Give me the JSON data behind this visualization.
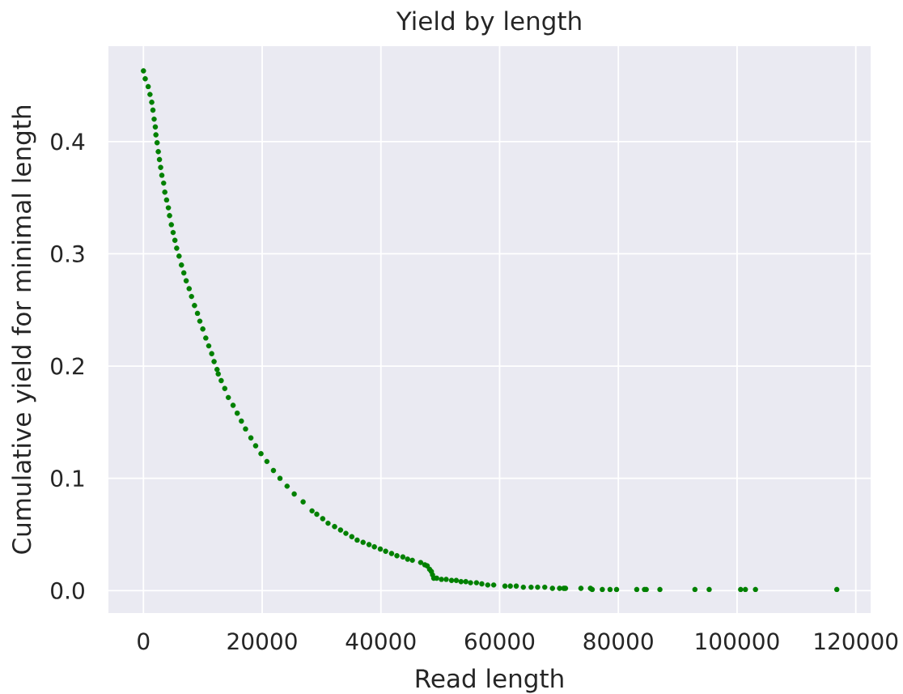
{
  "chart_data": {
    "type": "scatter",
    "title": "Yield by length",
    "xlabel": "Read length",
    "ylabel": "Cumulative yield for minimal length",
    "x": [
      0,
      300,
      800,
      1100,
      1400,
      1600,
      1800,
      2000,
      2100,
      2300,
      2500,
      2700,
      2900,
      3100,
      3400,
      3600,
      3900,
      4200,
      4400,
      4700,
      5000,
      5300,
      5600,
      6000,
      6400,
      6800,
      7200,
      7700,
      8100,
      8600,
      9100,
      9500,
      10000,
      10500,
      11000,
      11500,
      11900,
      12400,
      12600,
      13100,
      13700,
      14300,
      15100,
      15800,
      16500,
      17200,
      18100,
      18900,
      19800,
      20800,
      21900,
      23000,
      24200,
      25400,
      26900,
      28400,
      29200,
      30200,
      31100,
      32200,
      33200,
      34100,
      35100,
      36000,
      37000,
      38000,
      38900,
      39900,
      40800,
      41800,
      42700,
      43700,
      44500,
      45300,
      46700,
      47400,
      47800,
      48200,
      48500,
      48700,
      48900,
      49400,
      50200,
      51000,
      51900,
      52700,
      53500,
      54300,
      55100,
      56100,
      57000,
      58000,
      59000,
      60900,
      61800,
      62800,
      64000,
      65300,
      66400,
      67600,
      68900,
      70100,
      70800,
      71100,
      73700,
      75300,
      75600,
      77300,
      78600,
      79700,
      83100,
      84400,
      84700,
      87000,
      92900,
      95300,
      100600,
      101400,
      103100,
      116800
    ],
    "values": [
      0.463,
      0.456,
      0.449,
      0.442,
      0.435,
      0.428,
      0.42,
      0.413,
      0.406,
      0.399,
      0.391,
      0.384,
      0.377,
      0.37,
      0.363,
      0.355,
      0.348,
      0.341,
      0.334,
      0.326,
      0.319,
      0.312,
      0.305,
      0.298,
      0.29,
      0.283,
      0.276,
      0.269,
      0.262,
      0.254,
      0.247,
      0.24,
      0.233,
      0.225,
      0.218,
      0.211,
      0.204,
      0.197,
      0.193,
      0.187,
      0.18,
      0.172,
      0.165,
      0.158,
      0.151,
      0.144,
      0.136,
      0.129,
      0.122,
      0.115,
      0.107,
      0.1,
      0.093,
      0.086,
      0.079,
      0.071,
      0.068,
      0.064,
      0.06,
      0.057,
      0.054,
      0.051,
      0.048,
      0.045,
      0.043,
      0.041,
      0.039,
      0.037,
      0.035,
      0.033,
      0.031,
      0.03,
      0.028,
      0.027,
      0.025,
      0.023,
      0.022,
      0.019,
      0.017,
      0.014,
      0.011,
      0.011,
      0.01,
      0.01,
      0.009,
      0.009,
      0.008,
      0.008,
      0.007,
      0.007,
      0.006,
      0.005,
      0.005,
      0.004,
      0.004,
      0.004,
      0.003,
      0.003,
      0.003,
      0.003,
      0.002,
      0.002,
      0.002,
      0.002,
      0.002,
      0.002,
      0.001,
      0.001,
      0.001,
      0.001,
      0.001,
      0.001,
      0.001,
      0.001,
      0.001,
      0.001,
      0.001,
      0.001,
      0.001,
      0.001
    ],
    "color": "#008000",
    "marker": "circle",
    "xlim": [
      -5900,
      122500
    ],
    "ylim": [
      -0.02,
      0.485
    ],
    "xticks": [
      0,
      20000,
      40000,
      60000,
      80000,
      100000,
      120000
    ],
    "yticks": [
      {
        "value": 0,
        "label": "0.0"
      },
      0.1,
      0.2,
      0.3,
      0.4
    ],
    "grid": true
  }
}
